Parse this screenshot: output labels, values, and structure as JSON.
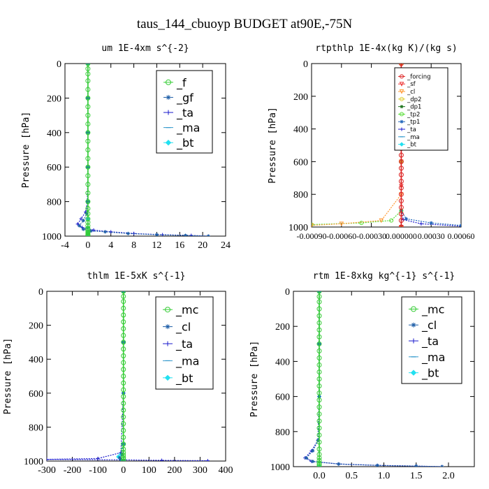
{
  "figure_title": "taus_144_cbuoyp  BUDGET at90E,-75N",
  "chart_data": [
    {
      "type": "line",
      "title": "um   1E-4xm s^{-2}",
      "ylabel": "Pressure [hPa]",
      "xlim": [
        -4,
        24
      ],
      "ylim": [
        1000,
        0
      ],
      "xticks": [
        "-4",
        "0",
        "4",
        "8",
        "12",
        "16",
        "20",
        "24"
      ],
      "xtick_values": [
        -4,
        0,
        4,
        8,
        12,
        16,
        20,
        24
      ],
      "yticks": [
        "0",
        "200",
        "400",
        "600",
        "800",
        "1000"
      ],
      "ytick_values": [
        0,
        200,
        400,
        600,
        800,
        1000
      ],
      "legend_placement": "upper-right",
      "series": [
        {
          "name": "_f",
          "color": "#33cc33",
          "marker": "circle",
          "x": [
            0,
            0,
            0,
            0,
            0,
            0,
            0,
            0,
            0,
            0,
            0,
            0,
            0,
            0,
            0,
            0,
            0,
            0,
            0,
            0,
            0,
            0,
            0,
            0,
            0,
            0,
            0,
            0,
            0,
            0,
            0
          ],
          "y": [
            0,
            30,
            60,
            100,
            150,
            200,
            250,
            300,
            350,
            400,
            450,
            500,
            550,
            600,
            650,
            700,
            750,
            800,
            840,
            870,
            900,
            920,
            940,
            955,
            965,
            975,
            983,
            990,
            995,
            998,
            1000
          ]
        },
        {
          "name": "_gf",
          "color": "#1f5fa8",
          "marker": "star",
          "x": [
            0,
            0,
            0,
            0,
            0,
            -0.2,
            -0.8,
            -1.5,
            -0.8,
            0.5,
            3,
            7,
            12,
            17,
            21
          ],
          "y": [
            0,
            200,
            400,
            600,
            800,
            870,
            910,
            940,
            960,
            970,
            975,
            985,
            992,
            996,
            1000
          ]
        },
        {
          "name": "_ta",
          "color": "#1a1acc",
          "marker": "plus",
          "x": [
            0,
            0,
            0,
            0,
            -0.1,
            -0.4,
            -1.2,
            -1.8,
            -1.0,
            1,
            4,
            8,
            13,
            18,
            21
          ],
          "y": [
            0,
            200,
            400,
            600,
            800,
            860,
            900,
            930,
            950,
            965,
            975,
            985,
            992,
            996,
            1000
          ]
        },
        {
          "name": "_ma",
          "color": "#3399cc",
          "marker": "dash",
          "x": [
            0,
            0,
            0,
            0,
            0,
            0,
            0,
            0,
            0,
            0
          ],
          "y": [
            0,
            200,
            400,
            600,
            800,
            900,
            950,
            975,
            990,
            1000
          ]
        },
        {
          "name": "_bt",
          "color": "#22e0f0",
          "marker": "diamond",
          "x": [
            0,
            0,
            0,
            0,
            0,
            0,
            0,
            0,
            0,
            0
          ],
          "y": [
            0,
            200,
            400,
            600,
            800,
            900,
            950,
            975,
            990,
            1000
          ]
        }
      ]
    },
    {
      "type": "line",
      "title": "rtpthlp   1E-4x(kg K)/(kg s)",
      "ylabel": "Pressure [hPa]",
      "xlim": [
        -0.0009,
        0.0006
      ],
      "ylim": [
        1000,
        0
      ],
      "xticks": [
        "-0.00090",
        "-0.00060",
        "-0.00030",
        "0.000000",
        "0.00030",
        "0.00060"
      ],
      "xtick_values": [
        -0.0009,
        -0.0006,
        -0.0003,
        0,
        0.0003,
        0.0006
      ],
      "yticks": [
        "0",
        "200",
        "400",
        "600",
        "800",
        "1000"
      ],
      "ytick_values": [
        0,
        200,
        400,
        600,
        800,
        1000
      ],
      "legend_placement": "upper-right",
      "series": [
        {
          "name": "_forcing",
          "color": "#dd2222",
          "marker": "circle",
          "x": [
            0,
            0,
            0,
            0,
            0,
            0,
            0,
            0,
            0,
            0,
            0,
            0,
            0,
            0,
            0,
            0,
            0,
            0,
            0,
            0,
            0,
            0,
            0,
            0,
            0,
            0
          ],
          "y": [
            0,
            40,
            80,
            120,
            160,
            200,
            240,
            280,
            320,
            360,
            400,
            440,
            480,
            520,
            560,
            600,
            640,
            680,
            720,
            760,
            800,
            840,
            880,
            920,
            960,
            1000
          ]
        },
        {
          "name": "_sf",
          "color": "#ee3333",
          "marker": "triangle",
          "x": [
            0,
            0,
            0,
            0,
            0
          ],
          "y": [
            0,
            250,
            500,
            750,
            1000
          ]
        },
        {
          "name": "_cl",
          "color": "#ff9933",
          "marker": "triangle",
          "x": [
            0,
            0,
            0,
            0,
            0,
            -0.0002,
            -0.0006,
            -0.0009
          ],
          "y": [
            0,
            200,
            400,
            600,
            800,
            960,
            980,
            990
          ]
        },
        {
          "name": "_dp2",
          "color": "#ddcc33",
          "marker": "circle",
          "x": [
            0,
            0,
            0,
            0
          ],
          "y": [
            0,
            300,
            600,
            1000
          ]
        },
        {
          "name": "_dp1",
          "color": "#227722",
          "marker": "star",
          "x": [
            0,
            0,
            0,
            0
          ],
          "y": [
            0,
            300,
            600,
            1000
          ]
        },
        {
          "name": "_tp2",
          "color": "#55dd33",
          "marker": "circle",
          "x": [
            0,
            0,
            0,
            0,
            -0.0001,
            -0.0004,
            -0.0009
          ],
          "y": [
            0,
            300,
            600,
            900,
            960,
            975,
            985
          ]
        },
        {
          "name": "_tp1",
          "color": "#2266bb",
          "marker": "star",
          "x": [
            0,
            0,
            0,
            0,
            5e-05,
            0.0003,
            0.0006
          ],
          "y": [
            0,
            300,
            600,
            900,
            950,
            975,
            990
          ]
        },
        {
          "name": "_ta",
          "color": "#1a1acc",
          "marker": "plus",
          "x": [
            0,
            0,
            0,
            0,
            2e-05,
            0.0002,
            0.0006
          ],
          "y": [
            0,
            300,
            600,
            900,
            955,
            980,
            995
          ]
        },
        {
          "name": "_ma",
          "color": "#3399cc",
          "marker": "dash",
          "x": [
            0,
            0,
            0,
            0
          ],
          "y": [
            0,
            300,
            600,
            1000
          ]
        },
        {
          "name": "_bt",
          "color": "#22e0f0",
          "marker": "diamond",
          "x": [
            0,
            0,
            0,
            0
          ],
          "y": [
            0,
            300,
            600,
            1000
          ]
        }
      ]
    },
    {
      "type": "line",
      "title": "thlm   1E-5xK s^{-1}",
      "ylabel": "Pressure [hPa]",
      "xlim": [
        -300,
        400
      ],
      "ylim": [
        1000,
        0
      ],
      "xticks": [
        "-300",
        "-200",
        "-100",
        "0",
        "100",
        "200",
        "300",
        "400"
      ],
      "xtick_values": [
        -300,
        -200,
        -100,
        0,
        100,
        200,
        300,
        400
      ],
      "yticks": [
        "0",
        "200",
        "400",
        "600",
        "800",
        "1000"
      ],
      "ytick_values": [
        0,
        200,
        400,
        600,
        800,
        1000
      ],
      "legend_placement": "upper-right",
      "series": [
        {
          "name": "_mc",
          "color": "#33cc33",
          "marker": "circle",
          "x": [
            0,
            0,
            0,
            0,
            0,
            0,
            0,
            0,
            0,
            0,
            0,
            0,
            0,
            0,
            0,
            0,
            0,
            0,
            0,
            0,
            0,
            0,
            0,
            0,
            0,
            0,
            0,
            0,
            0,
            0
          ],
          "y": [
            0,
            30,
            60,
            100,
            140,
            180,
            220,
            260,
            300,
            340,
            380,
            420,
            460,
            500,
            540,
            580,
            620,
            660,
            700,
            740,
            780,
            820,
            860,
            900,
            930,
            950,
            965,
            980,
            990,
            1000
          ]
        },
        {
          "name": "_cl",
          "color": "#1f5fa8",
          "marker": "star",
          "x": [
            0,
            0,
            0,
            0,
            -5,
            -15,
            -10,
            0
          ],
          "y": [
            0,
            300,
            600,
            900,
            960,
            980,
            990,
            1000
          ]
        },
        {
          "name": "_ta",
          "color": "#1a1acc",
          "marker": "plus",
          "x": [
            0,
            0,
            0,
            -10,
            -100,
            -300,
            0,
            150,
            330
          ],
          "y": [
            0,
            300,
            600,
            950,
            985,
            990,
            993,
            996,
            998
          ]
        },
        {
          "name": "_ma",
          "color": "#3399cc",
          "marker": "dash",
          "x": [
            0,
            0,
            0,
            0
          ],
          "y": [
            0,
            300,
            600,
            1000
          ]
        },
        {
          "name": "_bt",
          "color": "#22e0f0",
          "marker": "diamond",
          "x": [
            0,
            0,
            0,
            0,
            -10,
            -20,
            -10,
            0
          ],
          "y": [
            0,
            300,
            600,
            900,
            960,
            975,
            990,
            1000
          ]
        }
      ]
    },
    {
      "type": "line",
      "title": "rtm   1E-8xkg kg^{-1} s^{-1}",
      "ylabel": "Pressure [hPa]",
      "xlim": [
        -0.4,
        2.4
      ],
      "ylim": [
        1000,
        0
      ],
      "xticks": [
        "0.0",
        "0.5",
        "1.0",
        "1.5",
        "2.0"
      ],
      "xtick_values": [
        0,
        0.5,
        1.0,
        1.5,
        2.0
      ],
      "yticks": [
        "0",
        "200",
        "400",
        "600",
        "800",
        "1000"
      ],
      "ytick_values": [
        0,
        200,
        400,
        600,
        800,
        1000
      ],
      "legend_placement": "upper-right",
      "series": [
        {
          "name": "_mc",
          "color": "#33cc33",
          "marker": "circle",
          "x": [
            0,
            0,
            0,
            0,
            0,
            0,
            0,
            0,
            0,
            0,
            0,
            0,
            0,
            0,
            0,
            0,
            0,
            0,
            0,
            0,
            0,
            0,
            0,
            0,
            0,
            0,
            0,
            0,
            0,
            0
          ],
          "y": [
            0,
            30,
            60,
            100,
            140,
            180,
            220,
            260,
            300,
            340,
            380,
            420,
            460,
            500,
            540,
            580,
            620,
            660,
            700,
            740,
            780,
            820,
            860,
            900,
            930,
            950,
            965,
            980,
            990,
            1000
          ]
        },
        {
          "name": "_cl",
          "color": "#1f5fa8",
          "marker": "star",
          "x": [
            0,
            0,
            0,
            -0.02,
            -0.1,
            -0.2,
            -0.1,
            0.3,
            0.9,
            1.5,
            1.9
          ],
          "y": [
            0,
            300,
            600,
            850,
            910,
            950,
            970,
            985,
            993,
            997,
            1000
          ]
        },
        {
          "name": "_ta",
          "color": "#1a1acc",
          "marker": "plus",
          "x": [
            0,
            0,
            0,
            -0.02,
            -0.12,
            -0.22,
            -0.12,
            0.3,
            0.9,
            1.5,
            1.9
          ],
          "y": [
            0,
            300,
            600,
            850,
            910,
            950,
            970,
            985,
            993,
            997,
            1000
          ]
        },
        {
          "name": "_ma",
          "color": "#3399cc",
          "marker": "dash",
          "x": [
            0,
            0,
            0,
            0
          ],
          "y": [
            0,
            300,
            600,
            1000
          ]
        },
        {
          "name": "_bt",
          "color": "#22e0f0",
          "marker": "diamond",
          "x": [
            0,
            0,
            0,
            0
          ],
          "y": [
            0,
            300,
            600,
            1000
          ]
        }
      ]
    }
  ]
}
